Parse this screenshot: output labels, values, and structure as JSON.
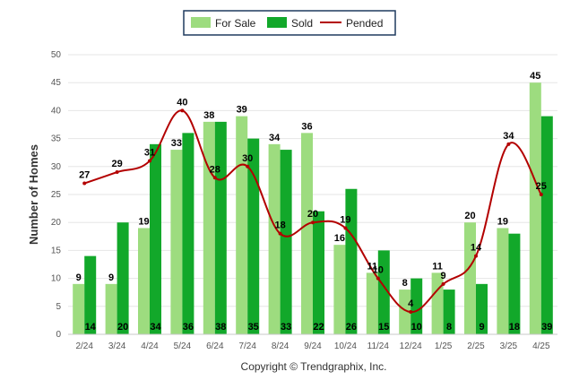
{
  "chart_data": {
    "type": "bar",
    "ylabel": "Number of Homes",
    "ylim": [
      0,
      50
    ],
    "yticks": [
      0,
      5,
      10,
      15,
      20,
      25,
      30,
      35,
      40,
      45,
      50
    ],
    "grid": true,
    "legend_position": "top-center",
    "categories": [
      "2/24",
      "3/24",
      "4/24",
      "5/24",
      "6/24",
      "7/24",
      "8/24",
      "9/24",
      "10/24",
      "11/24",
      "12/24",
      "1/25",
      "2/25",
      "3/25",
      "4/25"
    ],
    "series": [
      {
        "name": "For Sale",
        "kind": "bar",
        "color": "#9ddc7f",
        "values": [
          9,
          9,
          19,
          33,
          38,
          39,
          34,
          36,
          16,
          11,
          8,
          11,
          20,
          19,
          45
        ]
      },
      {
        "name": "Sold",
        "kind": "bar",
        "color": "#12a82a",
        "values": [
          14,
          20,
          34,
          36,
          38,
          35,
          33,
          22,
          26,
          15,
          10,
          8,
          9,
          18,
          39
        ]
      },
      {
        "name": "Pended",
        "kind": "line",
        "color": "#b30000",
        "values": [
          27,
          29,
          31,
          40,
          28,
          30,
          18,
          20,
          19,
          10,
          4,
          9,
          14,
          34,
          25
        ]
      }
    ]
  },
  "footer": "Copyright © Trendgraphix, Inc."
}
